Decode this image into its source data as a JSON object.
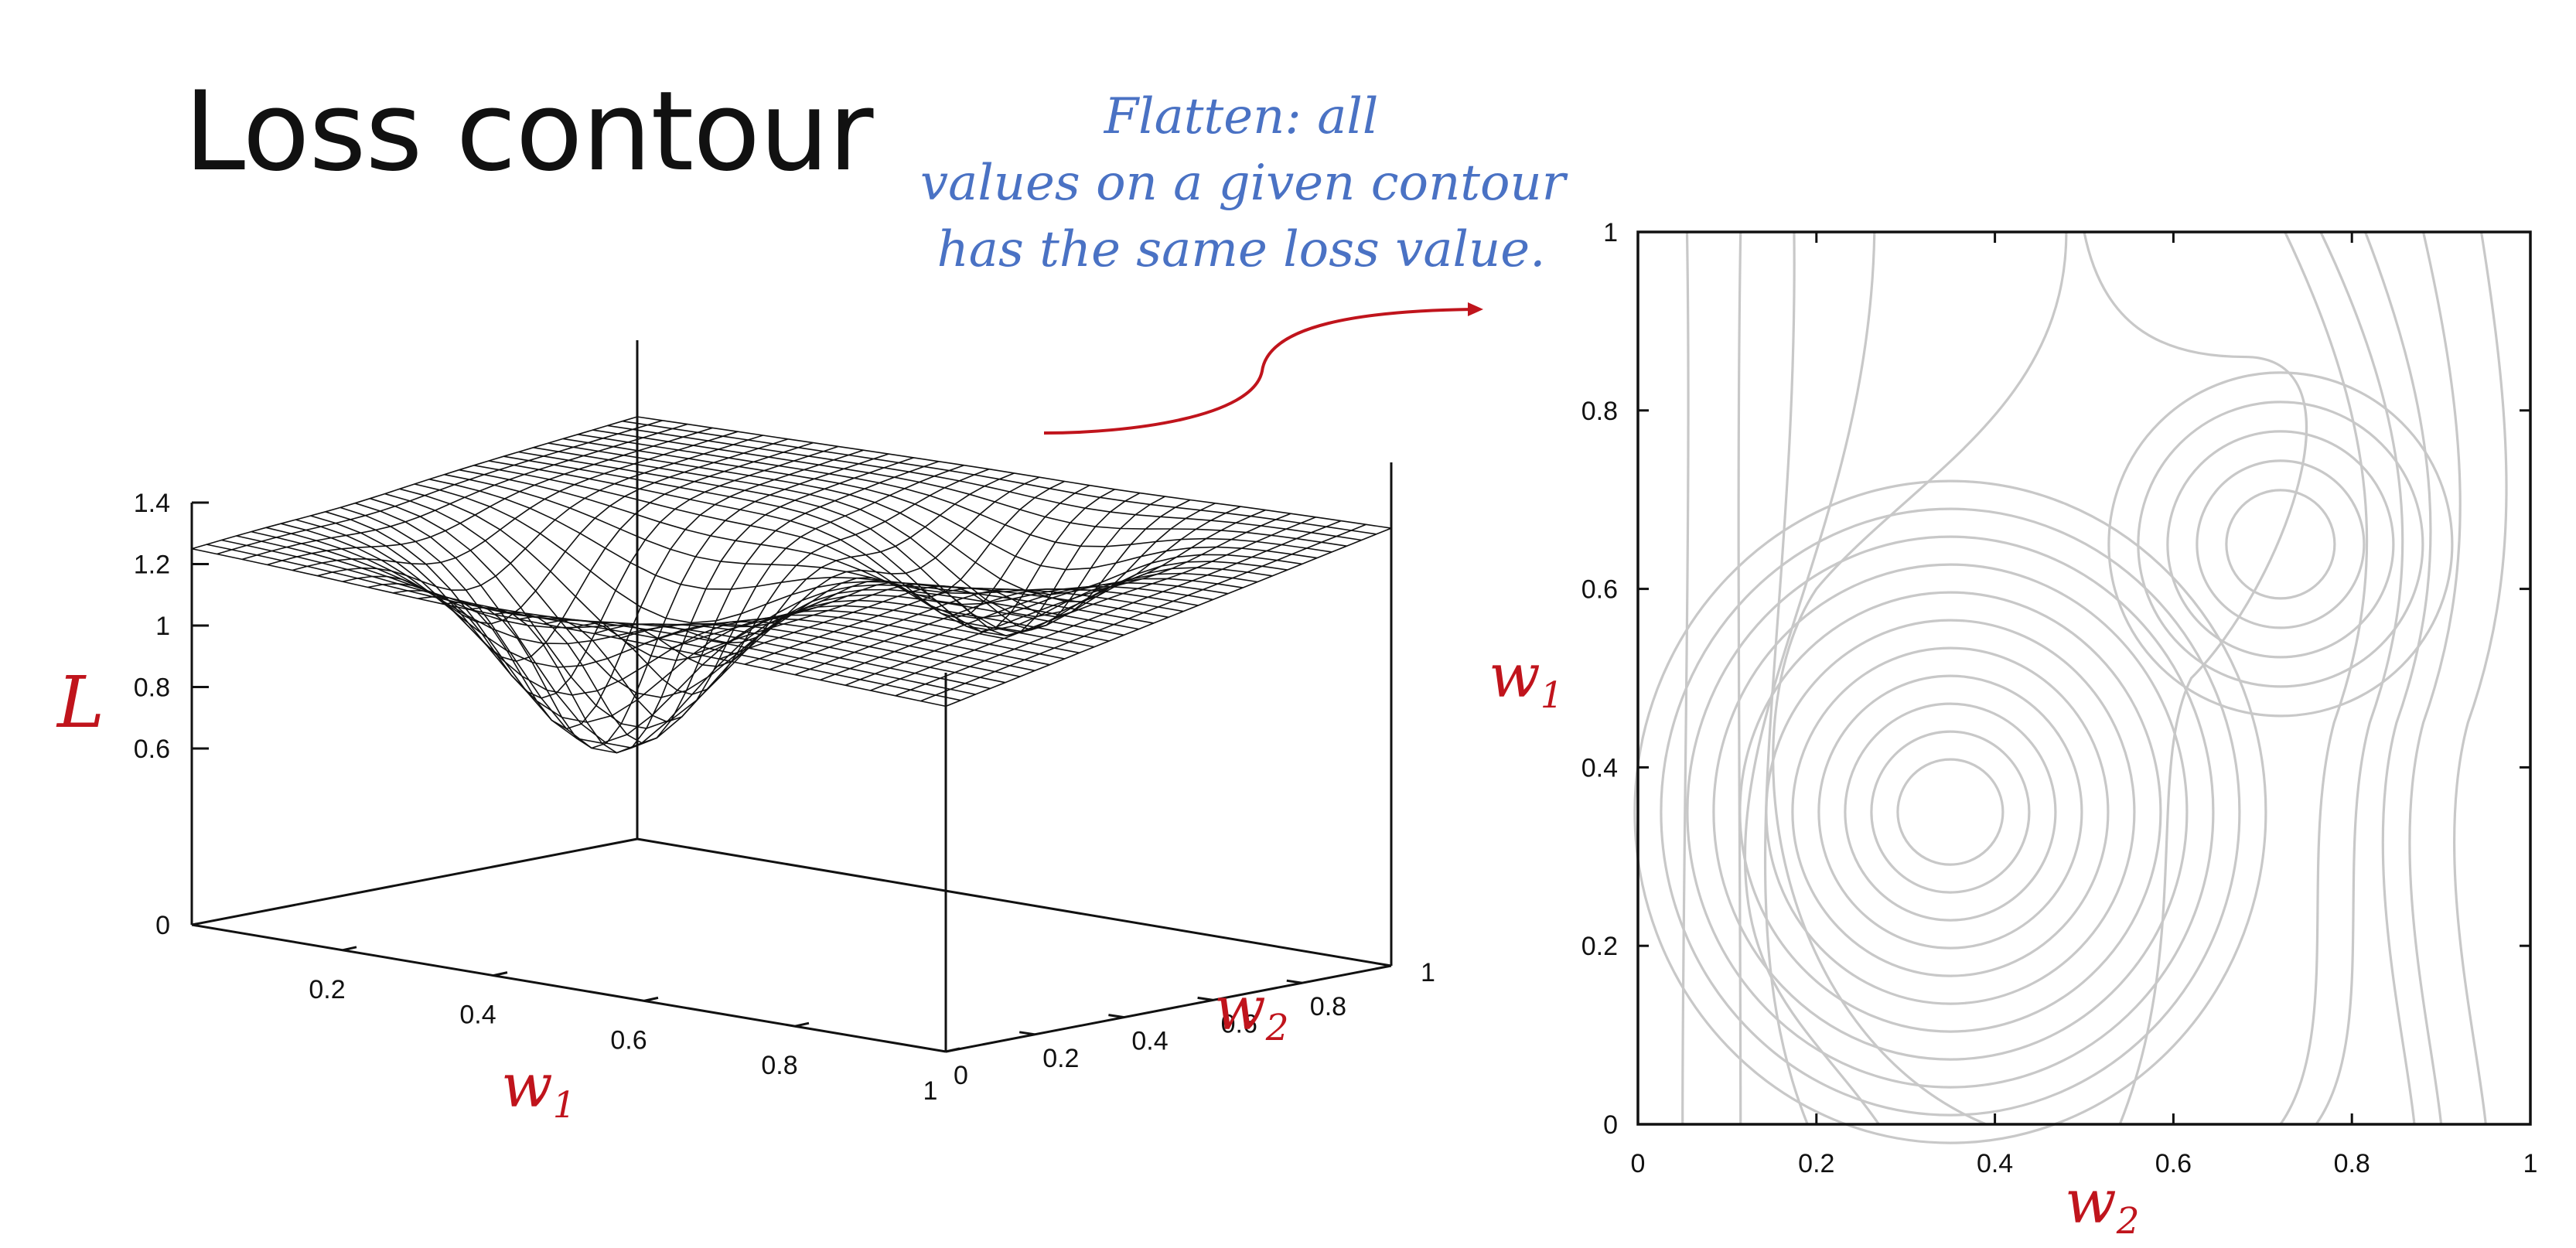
{
  "slide": {
    "title": "Loss contour",
    "annotation_lines": [
      "Flatten: all",
      "values on a given contour",
      "has the same loss value."
    ],
    "annotation_color": "#4a72c4",
    "accent_color": "#c0141c"
  },
  "chart_data": [
    {
      "type": "surface",
      "mesh": "wireframe",
      "mesh_color": "#111111",
      "z_axis_label": "L",
      "x_axis_label": "w1",
      "y_axis_label": "w2",
      "xlim": [
        0,
        1
      ],
      "ylim": [
        0,
        1
      ],
      "zlim": [
        0,
        1.4
      ],
      "z_ticks": [
        "0",
        "0.6",
        "0.8",
        "1",
        "1.2",
        "1.4"
      ],
      "x_ticks": [
        "0.2",
        "0.4",
        "0.6",
        "0.8",
        "1"
      ],
      "y_ticks": [
        "0",
        "0.2",
        "0.4",
        "0.6",
        "0.8",
        "1"
      ],
      "surface_minima": [
        {
          "w1": 0.35,
          "w2": 0.35,
          "L": 0.6
        },
        {
          "w1": 0.65,
          "w2": 0.72,
          "L": 0.87
        }
      ],
      "surface_corners": [
        {
          "w1": 0,
          "w2": 0,
          "L": 1.25
        },
        {
          "w1": 0,
          "w2": 1,
          "L": 1.4
        },
        {
          "w1": 1,
          "w2": 1,
          "L": 1.3
        }
      ]
    },
    {
      "type": "contour",
      "line_color": "#c8c8c8",
      "x_axis_label": "w2",
      "y_axis_label": "w1",
      "xlim": [
        0,
        1
      ],
      "ylim": [
        0,
        1
      ],
      "x_ticks": [
        "0",
        "0.2",
        "0.4",
        "0.6",
        "0.8",
        "1"
      ],
      "y_ticks": [
        "0",
        "0.2",
        "0.4",
        "0.6",
        "0.8",
        "1"
      ],
      "minima": [
        {
          "w2": 0.35,
          "w1": 0.35,
          "rings": 11
        },
        {
          "w2": 0.72,
          "w1": 0.65,
          "rings": 5
        }
      ]
    }
  ]
}
